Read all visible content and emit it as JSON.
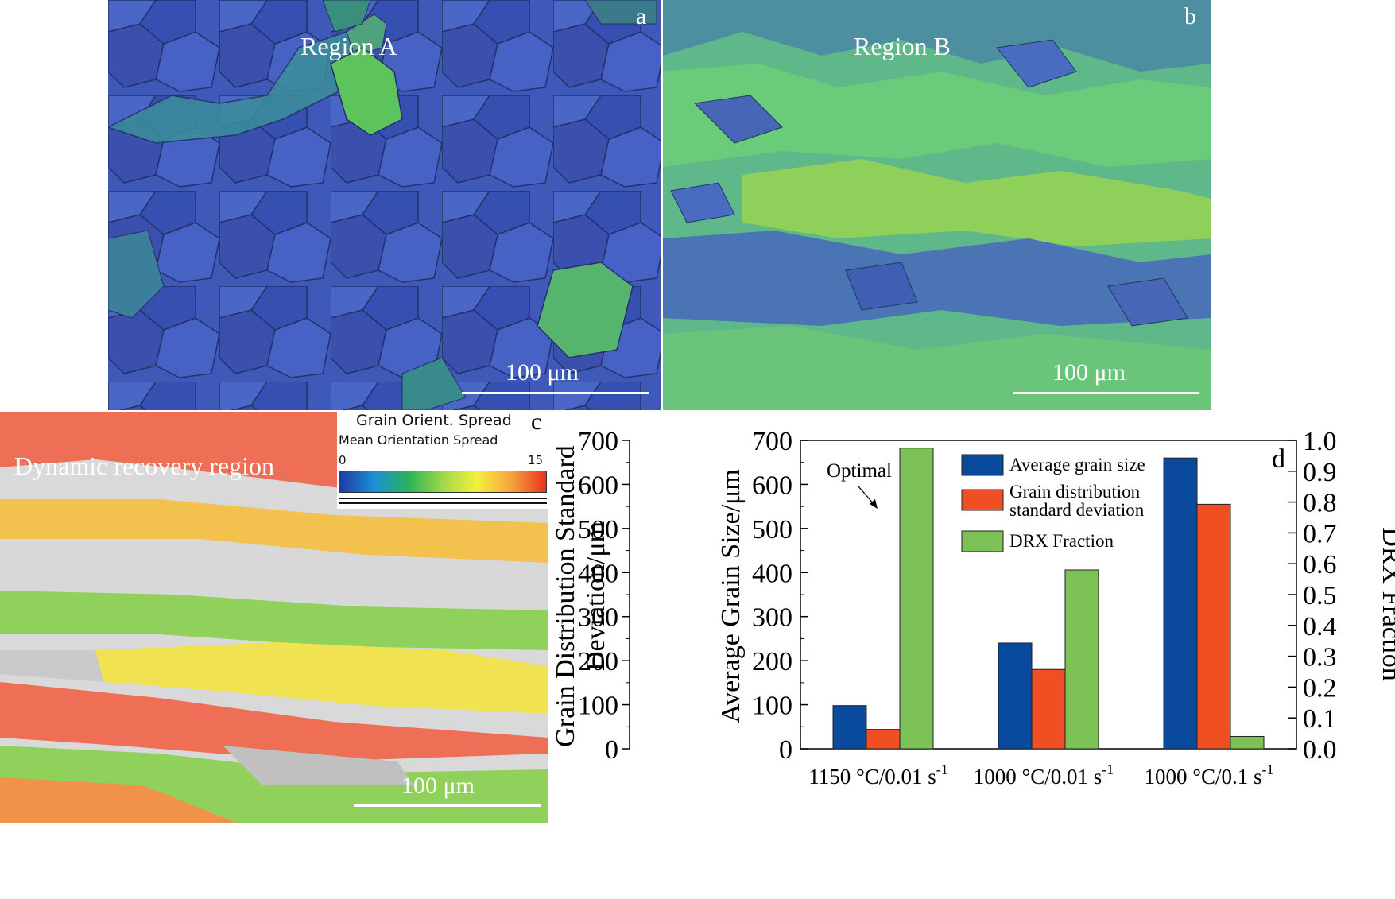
{
  "panel_a": {
    "letter": "a",
    "region": "Region A",
    "scale": "100 μm"
  },
  "panel_b": {
    "letter": "b",
    "region": "Region B",
    "scale": "100 μm"
  },
  "panel_c": {
    "letter": "c",
    "region": "Dynamic recovery region",
    "scale": "100 μm",
    "legend": {
      "title": "Grain Orient. Spread",
      "subtitle": "Mean Orientation Spread",
      "min": "0",
      "max": "15"
    }
  },
  "panel_d": {
    "letter": "d",
    "annotation": "Optimal"
  },
  "colors": {
    "avg_grain": "#0a4a9c",
    "std_dev": "#f04e23",
    "drx": "#7cc257"
  },
  "chart_data": {
    "type": "bar",
    "categories": [
      "1150 °C/0.01 s",
      "1000 °C/0.01 s",
      "1000 °C/0.1 s"
    ],
    "category_superscript": "-1",
    "series": [
      {
        "name": "Average grain size",
        "values": [
          98,
          240,
          660
        ],
        "axis": "left-inner"
      },
      {
        "name": "Grain distribution standard deviation",
        "values": [
          44,
          180,
          555
        ],
        "axis": "left-outer"
      },
      {
        "name": "DRX Fraction",
        "values": [
          0.975,
          0.58,
          0.04
        ],
        "axis": "right"
      }
    ],
    "legend_labels": [
      [
        "Average grain size"
      ],
      [
        "Grain distribution",
        "standard deviation"
      ],
      [
        "DRX Fraction"
      ]
    ],
    "y_left_outer": {
      "label_lines": [
        "Grain Distribution Standard",
        "Deviation/μm"
      ],
      "ylim": [
        0,
        700
      ],
      "ticks": [
        "0",
        "100",
        "200",
        "300",
        "400",
        "500",
        "600",
        "700"
      ]
    },
    "y_left_inner": {
      "label": "Average Grain Size/μm",
      "ylim": [
        0,
        700
      ],
      "ticks": [
        "0",
        "100",
        "200",
        "300",
        "400",
        "500",
        "600",
        "700"
      ]
    },
    "y_right": {
      "label": "DRX Fraction",
      "ylim": [
        0,
        1.0
      ],
      "ticks": [
        "0.0",
        "0.1",
        "0.2",
        "0.3",
        "0.4",
        "0.5",
        "0.6",
        "0.7",
        "0.8",
        "0.9",
        "1.0"
      ]
    },
    "legend_position": "top-right",
    "grid": false
  }
}
